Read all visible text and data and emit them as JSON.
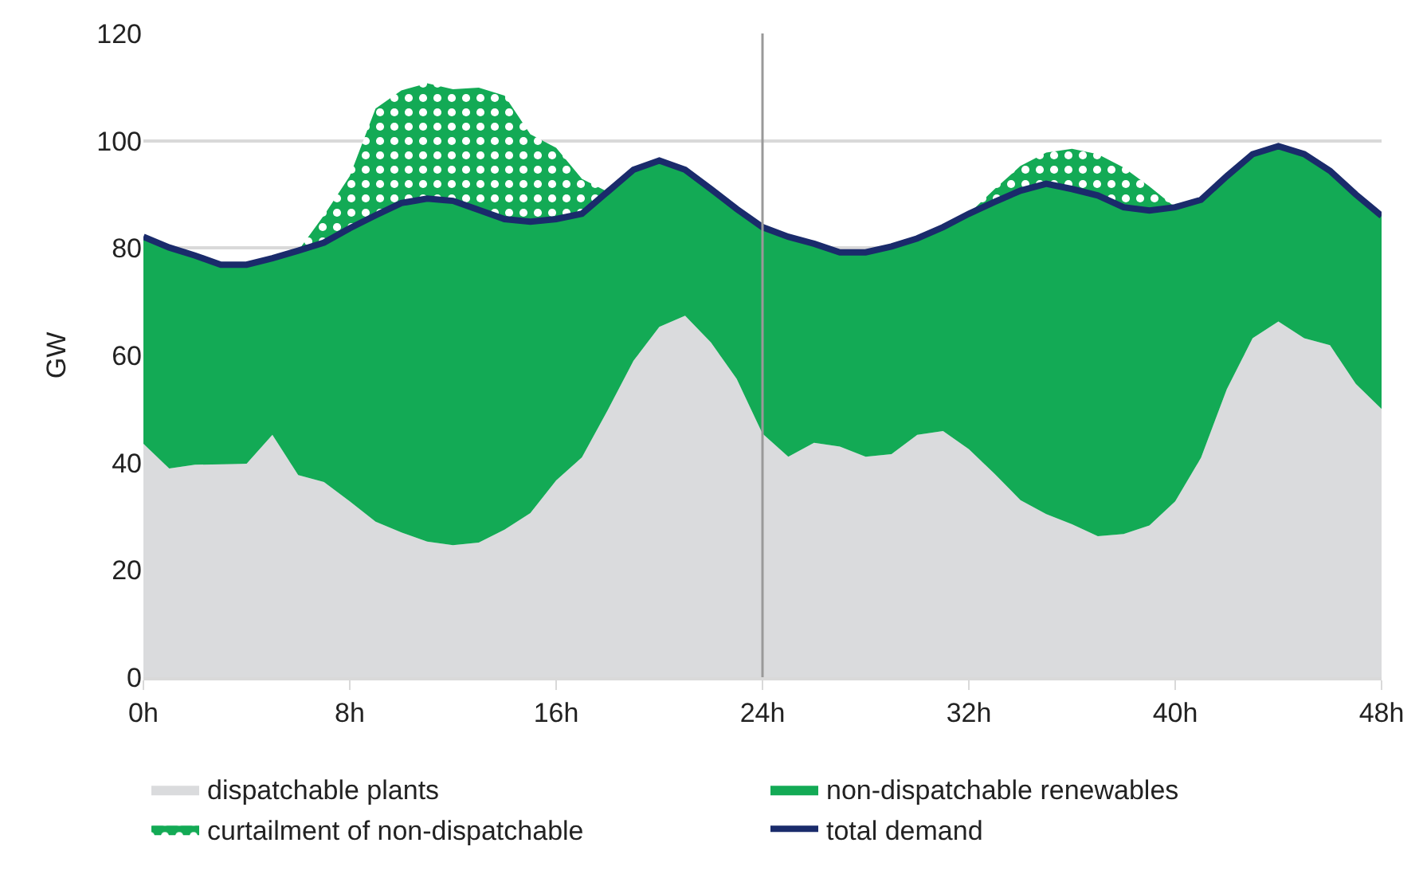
{
  "chart_data": {
    "type": "area",
    "stacked": true,
    "ylabel": "GW",
    "x": [
      0,
      1,
      2,
      3,
      4,
      5,
      6,
      7,
      8,
      9,
      10,
      11,
      12,
      13,
      14,
      15,
      16,
      17,
      18,
      19,
      20,
      21,
      22,
      23,
      24,
      25,
      26,
      27,
      28,
      29,
      30,
      31,
      32,
      33,
      34,
      35,
      36,
      37,
      38,
      39,
      40,
      41,
      42,
      43,
      44,
      45,
      46,
      47,
      48
    ],
    "series": [
      {
        "name": "dispatchable plants",
        "color": "#dadbdd",
        "values": [
          43.5,
          38.9,
          39.6,
          39.7,
          39.8,
          45.2,
          37.7,
          36.4,
          32.8,
          29.0,
          27.0,
          25.3,
          24.6,
          25.1,
          27.5,
          30.6,
          36.7,
          41.0,
          49.8,
          59.0,
          65.3,
          67.4,
          62.4,
          55.6,
          45.4,
          41.1,
          43.7,
          43.0,
          41.1,
          41.6,
          45.2,
          45.9,
          42.5,
          37.9,
          33.0,
          30.4,
          28.5,
          26.3,
          26.7,
          28.3,
          32.8,
          40.9,
          53.7,
          63.2,
          66.3,
          63.2,
          61.9,
          54.7,
          50.0
        ]
      },
      {
        "name": "non-dispatchable renewables",
        "color": "#13aa55",
        "values": [
          38.6,
          41.2,
          39.0,
          37.2,
          37.1,
          32.9,
          41.8,
          44.6,
          50.9,
          57.1,
          61.4,
          63.9,
          64.2,
          62.0,
          57.9,
          54.3,
          48.7,
          45.4,
          40.7,
          35.6,
          31.0,
          27.2,
          28.6,
          31.7,
          38.5,
          41.0,
          37.1,
          36.2,
          38.1,
          38.7,
          36.6,
          38.0,
          43.9,
          50.7,
          57.7,
          61.6,
          62.5,
          63.5,
          60.9,
          58.7,
          54.8,
          48.1,
          39.7,
          34.3,
          32.7,
          34.3,
          32.5,
          35.3,
          36.0
        ]
      },
      {
        "name": "curtailment of non-dispatchable",
        "color": "#13aa55",
        "values": [
          0,
          0,
          0,
          0,
          0,
          0,
          0,
          5.1,
          9.7,
          19.9,
          21.0,
          21.5,
          20.8,
          22.8,
          23.0,
          16.3,
          13.3,
          6.5,
          0,
          0,
          0,
          0,
          0,
          0,
          0,
          0,
          0,
          0,
          0,
          0,
          0,
          0,
          0,
          2.4,
          4.6,
          5.8,
          7.5,
          7.7,
          7.4,
          4.5,
          0,
          0,
          0,
          0,
          0,
          0,
          0,
          0,
          0
        ]
      },
      {
        "name": "total demand",
        "type": "line",
        "color": "#1a2b6b",
        "values": [
          82.1,
          80.1,
          78.6,
          76.9,
          76.9,
          78.1,
          79.5,
          81.0,
          83.7,
          86.1,
          88.4,
          89.2,
          88.8,
          87.1,
          85.4,
          84.9,
          85.4,
          86.4,
          90.5,
          94.6,
          96.3,
          94.6,
          91.0,
          87.3,
          83.9,
          82.1,
          80.8,
          79.2,
          79.2,
          80.3,
          81.8,
          83.9,
          86.4,
          88.6,
          90.7,
          92.0,
          91.0,
          89.8,
          87.6,
          87.0,
          87.6,
          89.0,
          93.4,
          97.5,
          99.0,
          97.5,
          94.4,
          90.0,
          86.0
        ]
      }
    ],
    "xlim": [
      0,
      48
    ],
    "xticks": [
      {
        "value": 0,
        "label": "0h"
      },
      {
        "value": 8,
        "label": "8h"
      },
      {
        "value": 16,
        "label": "16h"
      },
      {
        "value": 24,
        "label": "24h"
      },
      {
        "value": 32,
        "label": "32h"
      },
      {
        "value": 40,
        "label": "40h"
      },
      {
        "value": 48,
        "label": "48h"
      }
    ],
    "ylim": [
      0,
      120
    ],
    "yticks": [
      0,
      20,
      40,
      60,
      80,
      100,
      120
    ],
    "ref_lines": [
      {
        "axis": "x",
        "value": 24,
        "color": "#999999"
      }
    ],
    "grid": "y",
    "legend": "bottom",
    "line_style": "solid",
    "marker": "none"
  }
}
